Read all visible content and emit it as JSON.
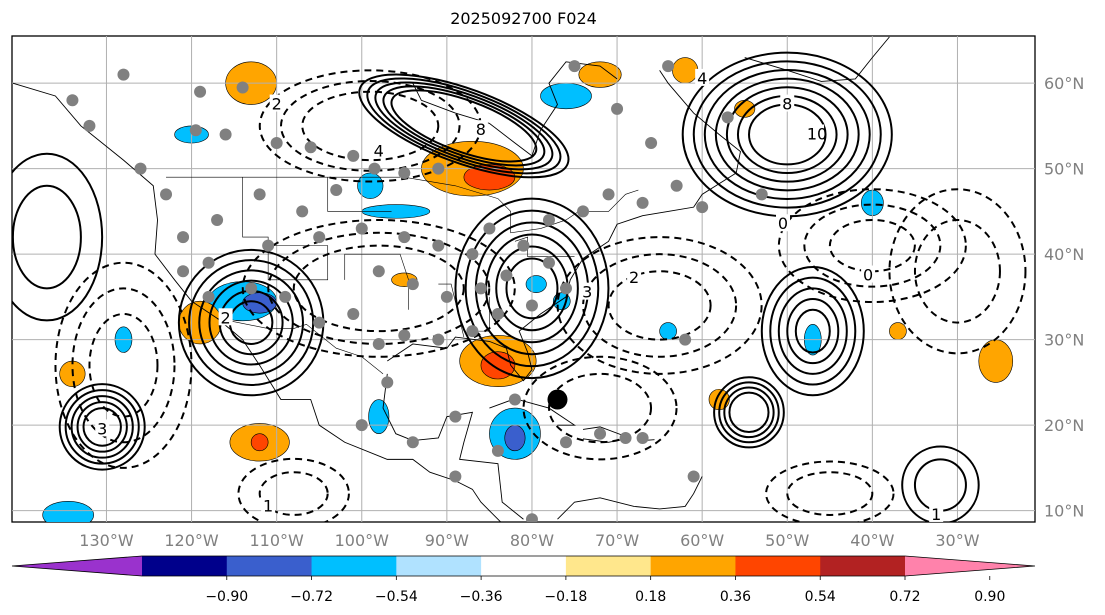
{
  "title": "2025092700 F024",
  "lon_labels": [
    "130°W",
    "120°W",
    "110°W",
    "100°W",
    "90°W",
    "80°W",
    "70°W",
    "60°W",
    "50°W",
    "40°W",
    "30°W"
  ],
  "lat_labels": [
    "60°N",
    "50°N",
    "40°N",
    "30°N",
    "20°N",
    "10°N"
  ],
  "colorbar": {
    "colors": [
      "#9a32cd",
      "#00008b",
      "#3a5fcd",
      "#00bfff",
      "#b0e2ff",
      "#ffffff",
      "#ffe78c",
      "#ffa500",
      "#ff4500",
      "#b22222",
      "#ff82ab"
    ],
    "ticks": [
      "−0.90",
      "−0.72",
      "−0.54",
      "−0.36",
      "−0.18",
      "0.18",
      "0.36",
      "0.54",
      "0.72",
      "0.90"
    ]
  },
  "contour_labels": [
    {
      "text": "3",
      "lon": -130.5,
      "lat": 19.5
    },
    {
      "text": "1",
      "lon": -111,
      "lat": 10.5
    },
    {
      "text": "2",
      "lon": -116,
      "lat": 32.5
    },
    {
      "text": "4",
      "lon": -98,
      "lat": 52
    },
    {
      "text": "2",
      "lon": -110,
      "lat": 57.5
    },
    {
      "text": "8",
      "lon": -86,
      "lat": 54.5
    },
    {
      "text": "3",
      "lon": -73.5,
      "lat": 35.5
    },
    {
      "text": "2",
      "lon": -68,
      "lat": 37.2
    },
    {
      "text": "8",
      "lon": -50,
      "lat": 57.5
    },
    {
      "text": "10",
      "lon": -46.5,
      "lat": 54
    },
    {
      "text": "0",
      "lon": -50.5,
      "lat": 43.5
    },
    {
      "text": "1",
      "lon": -32.5,
      "lat": 9.5
    },
    {
      "text": "4",
      "lon": -60,
      "lat": 60.5
    },
    {
      "text": "0",
      "lon": -40.5,
      "lat": 37.5
    }
  ],
  "stations": [
    [
      -128,
      61
    ],
    [
      -119,
      59
    ],
    [
      -114,
      59.5
    ],
    [
      -119.5,
      54.5
    ],
    [
      -116,
      54
    ],
    [
      -110,
      53
    ],
    [
      -106,
      52.5
    ],
    [
      -101,
      51.5
    ],
    [
      -98.5,
      50
    ],
    [
      -95,
      49.5
    ],
    [
      -91,
      50
    ],
    [
      -103,
      47.5
    ],
    [
      -107,
      45
    ],
    [
      -112,
      47
    ],
    [
      -117,
      44
    ],
    [
      -121,
      42
    ],
    [
      -118,
      39
    ],
    [
      -111,
      41
    ],
    [
      -105,
      42
    ],
    [
      -100,
      43
    ],
    [
      -95,
      42
    ],
    [
      -91,
      41
    ],
    [
      -87,
      40
    ],
    [
      -85,
      43
    ],
    [
      -81,
      41
    ],
    [
      -78,
      39
    ],
    [
      -76,
      36
    ],
    [
      -80,
      34
    ],
    [
      -84,
      33
    ],
    [
      -87,
      31
    ],
    [
      -91,
      30
    ],
    [
      -95,
      30.5
    ],
    [
      -98,
      29.5
    ],
    [
      -101,
      33
    ],
    [
      -105,
      32
    ],
    [
      -109,
      35
    ],
    [
      -113,
      36
    ],
    [
      -118,
      35
    ],
    [
      -121,
      38
    ],
    [
      -98,
      38
    ],
    [
      -94,
      36.5
    ],
    [
      -90,
      35
    ],
    [
      -86,
      36
    ],
    [
      -83,
      37.5
    ],
    [
      -78,
      44
    ],
    [
      -74,
      45
    ],
    [
      -71,
      47
    ],
    [
      -67,
      46
    ],
    [
      -63,
      48
    ],
    [
      -60,
      45.5
    ],
    [
      -66,
      53
    ],
    [
      -70,
      57
    ],
    [
      -75,
      62
    ],
    [
      -64,
      62
    ],
    [
      -57,
      56
    ],
    [
      -53,
      47
    ],
    [
      -62,
      30
    ],
    [
      -97,
      25
    ],
    [
      -100,
      20
    ],
    [
      -94,
      18
    ],
    [
      -89,
      21
    ],
    [
      -82,
      23
    ],
    [
      -76,
      18
    ],
    [
      -72,
      19
    ],
    [
      -69,
      18.5
    ],
    [
      -67,
      18.5
    ],
    [
      -61,
      14
    ],
    [
      -80,
      9
    ],
    [
      -89,
      14
    ],
    [
      -84,
      17
    ],
    [
      -132,
      55
    ],
    [
      -134,
      58
    ],
    [
      -126,
      50
    ],
    [
      -123,
      47
    ]
  ],
  "big_marker": {
    "lon": -77,
    "lat": 23
  }
}
